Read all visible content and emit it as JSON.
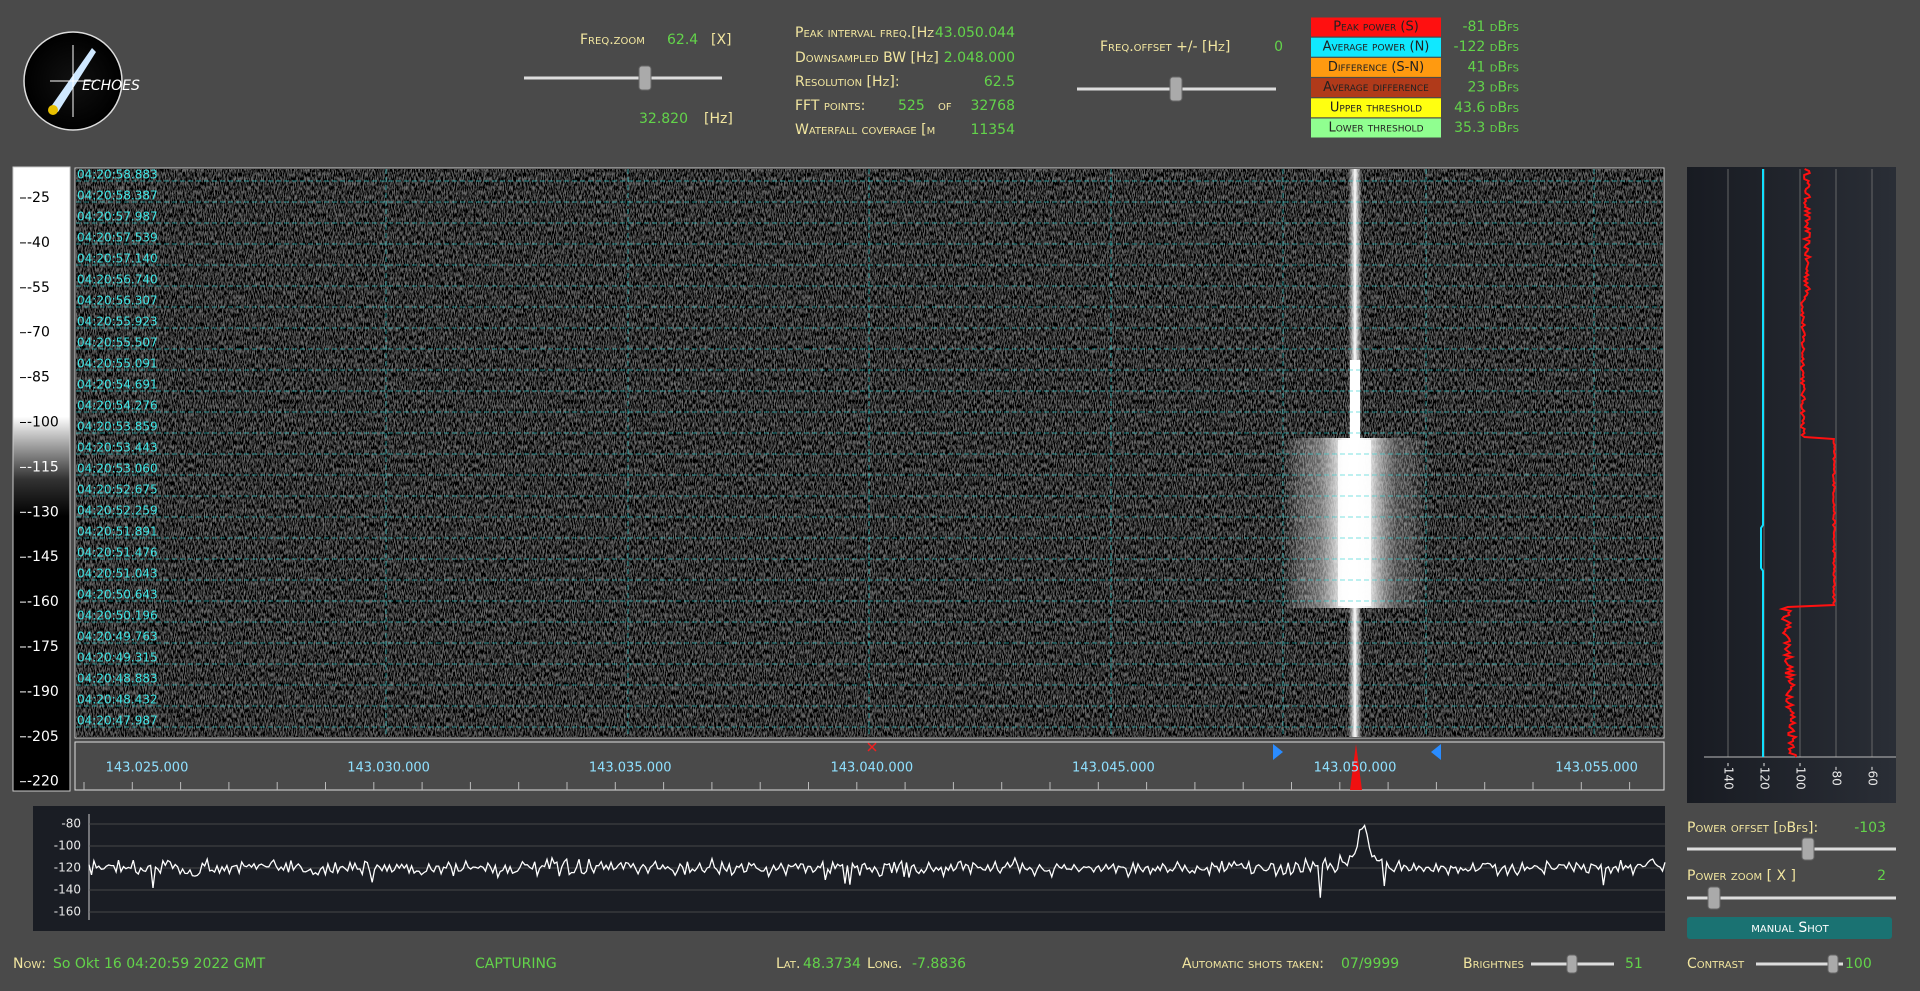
{
  "logo": "ECHOES",
  "freq_zoom": {
    "label": "Freq.zoom",
    "value": "62.4",
    "unit": "[X]",
    "span": "32.820",
    "span_unit": "[Hz]"
  },
  "info": [
    {
      "label": "Peak interval freq.[Hz",
      "value": "43.050.044"
    },
    {
      "label": "Downsampled BW  [Hz]",
      "value": "2.048.000"
    },
    {
      "label": "Resolution [Hz]:",
      "value": "62.5"
    },
    {
      "label": "FFT points:",
      "value": "525",
      "of": "of",
      "total": "32768"
    },
    {
      "label": "Waterfall coverage [m",
      "value": "11354"
    }
  ],
  "freq_offset": {
    "label": "Freq.offset +/- [Hz]",
    "value": "0"
  },
  "legend": [
    {
      "label": "Peak power (S)",
      "value": "-81 dBfs"
    },
    {
      "label": "Average power (N)",
      "value": "-122 dBfs"
    },
    {
      "label": "Difference (S-N)",
      "value": "41 dBfs"
    },
    {
      "label": "Average difference",
      "value": "23 dBfs"
    },
    {
      "label": "Upper threshold",
      "value": "43.6 dBfs"
    },
    {
      "label": "Lower threshold",
      "value": "35.3 dBfs"
    }
  ],
  "level_scale": [
    "-25",
    "-40",
    "-55",
    "-70",
    "-85",
    "-100",
    "-115",
    "-130",
    "-145",
    "-160",
    "-175",
    "-190",
    "-205",
    "-220"
  ],
  "timestamps": [
    "04:20:58.883",
    "04:20:58.387",
    "04:20:57.987",
    "04:20:57.539",
    "04:20:57.140",
    "04:20:56.740",
    "04:20:56.307",
    "04:20:55.923",
    "04:20:55.507",
    "04:20:55.091",
    "04:20:54.691",
    "04:20:54.276",
    "04:20:53.859",
    "04:20:53.443",
    "04:20:53.060",
    "04:20:52.675",
    "04:20:52.259",
    "04:20:51.891",
    "04:20:51.476",
    "04:20:51.043",
    "04:20:50.643",
    "04:20:50.196",
    "04:20:49.763",
    "04:20:49.315",
    "04:20:48.883",
    "04:20:48.432",
    "04:20:47.987"
  ],
  "freq_axis": [
    "143.025.000",
    "143.030.000",
    "143.035.000",
    "143.040.000",
    "143.045.000",
    "143.050.000",
    "143.055.000"
  ],
  "power_axis": [
    "-140",
    "-120",
    "-100",
    "-80",
    "-60"
  ],
  "spectrum_axis": [
    "-80",
    "-100",
    "-120",
    "-140",
    "-160"
  ],
  "power_offset": {
    "label": "Power offset [dBfs]:",
    "value": "-103"
  },
  "power_zoom": {
    "label": "Power zoom  [ X ]",
    "value": "2"
  },
  "button": "manual Shot",
  "status": {
    "now_label": "Now:",
    "now": "So Okt 16 04:20:59 2022 GMT",
    "state": "CAPTURING",
    "lat_label": "Lat.",
    "lat": "48.3734",
    "long_label": "Long.",
    "long": "-7.8836",
    "shots_label": "Automatic shots taken:",
    "shots": "07/9999",
    "brightness_label": "Brightnes",
    "brightness": "51",
    "contrast_label": "Contrast",
    "contrast": "100"
  }
}
